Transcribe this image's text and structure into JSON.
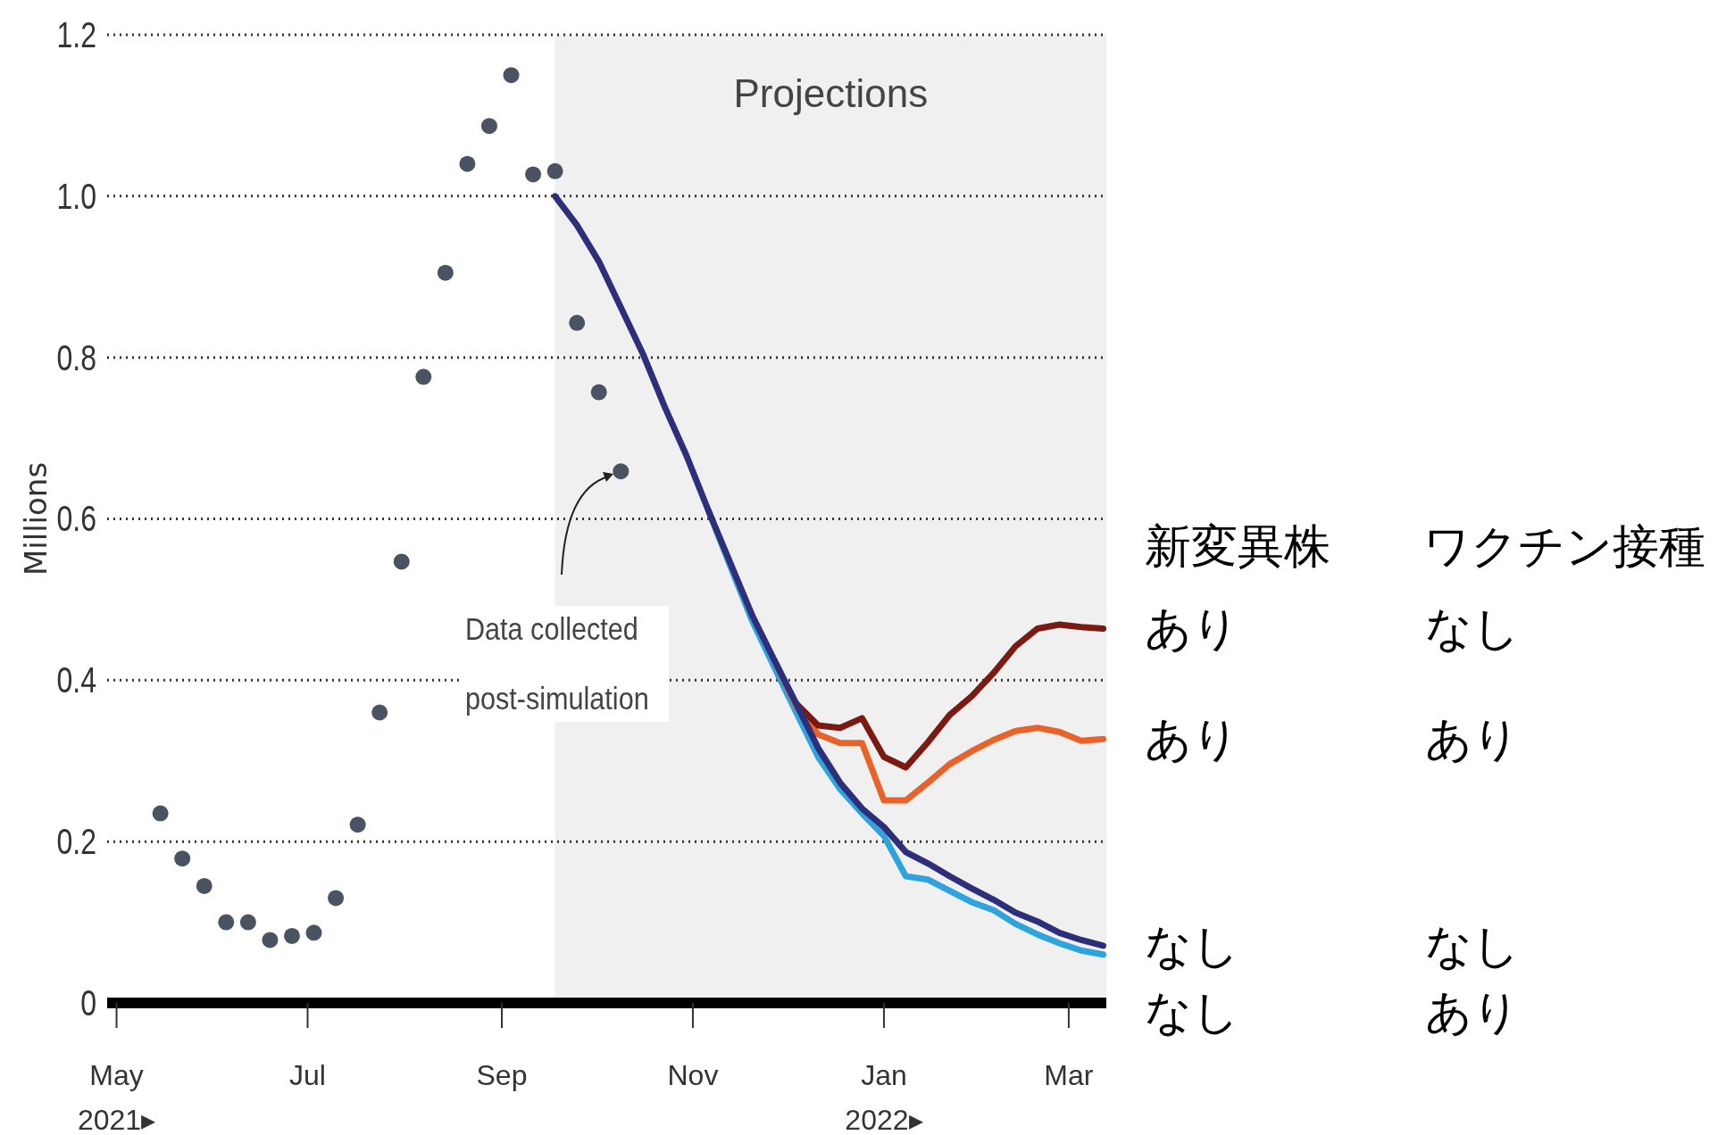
{
  "chart_data": {
    "type": "line",
    "ylabel": "Millions",
    "ylim": [
      0,
      1.2
    ],
    "yticks": [
      0,
      0.2,
      0.4,
      0.6,
      0.8,
      {
        "value": 1,
        "label": "1.0"
      },
      1.2
    ],
    "xlim": [
      "2021-04-28",
      "2022-03-13"
    ],
    "xticks": [
      {
        "value": "2021-05-01",
        "label": "May\n2021▸"
      },
      {
        "value": "2021-07-01",
        "label": "Jul"
      },
      {
        "value": "2021-09-01",
        "label": "Sep"
      },
      {
        "value": "2021-11-01",
        "label": "Nov"
      },
      {
        "value": "2022-01-01",
        "label": "Jan\n2022▸"
      },
      {
        "value": "2022-03-01",
        "label": "Mar"
      }
    ],
    "grid": "y",
    "legend": "right",
    "legend_title": "新変異株　　ワクチン接種",
    "bands": [
      {
        "axis": "x",
        "from": "2021-09-18",
        "to": "2022-03-13",
        "label": "Projections",
        "color": "#f0f0f0"
      }
    ],
    "annotations": [
      "Data collected\npost-simulation"
    ],
    "series": [
      {
        "type": "scatter",
        "color": "#4a5361",
        "x": [
          "2021-05-15",
          "2021-05-22",
          "2021-05-29",
          "2021-06-05",
          "2021-06-12",
          "2021-06-19",
          "2021-06-26",
          "2021-07-03",
          "2021-07-10",
          "2021-07-17",
          "2021-07-24",
          "2021-07-31",
          "2021-08-07",
          "2021-08-14",
          "2021-08-21",
          "2021-08-28",
          "2021-09-04",
          "2021-09-11",
          "2021-09-18",
          "2021-09-25",
          "2021-10-02",
          "2021-10-09"
        ],
        "values": [
          0.235,
          0.179,
          0.145,
          0.1,
          0.1,
          0.078,
          0.083,
          0.087,
          0.13,
          0.221,
          0.36,
          0.547,
          0.776,
          0.905,
          1.04,
          1.087,
          1.15,
          1.027,
          1.031,
          0.843,
          0.757,
          0.659
        ]
      },
      {
        "name": "なし　　　　あり",
        "color": "#2ea3dc",
        "x": [
          "2021-11-06",
          "2021-11-13",
          "2021-11-20",
          "2021-11-27",
          "2021-12-04",
          "2021-12-11",
          "2021-12-18",
          "2021-12-25",
          "2022-01-01",
          "2022-01-08",
          "2022-01-15",
          "2022-01-22",
          "2022-01-29",
          "2022-02-05",
          "2022-02-12",
          "2022-02-19",
          "2022-02-26",
          "2022-03-05",
          "2022-03-12"
        ],
        "values": [
          0.61,
          0.541,
          0.473,
          0.416,
          0.36,
          0.305,
          0.265,
          0.235,
          0.207,
          0.157,
          0.153,
          0.139,
          0.125,
          0.115,
          0.098,
          0.085,
          0.074,
          0.065,
          0.06
        ]
      },
      {
        "name": "あり　　　　あり",
        "color": "#e8622a",
        "x": [
          "2021-11-27",
          "2021-12-04",
          "2021-12-11",
          "2021-12-18",
          "2021-12-25",
          "2022-01-01",
          "2022-01-08",
          "2022-01-15",
          "2022-01-22",
          "2022-01-29",
          "2022-02-05",
          "2022-02-12",
          "2022-02-19",
          "2022-02-26",
          "2022-03-05",
          "2022-03-12"
        ],
        "values": [
          0.425,
          0.368,
          0.333,
          0.322,
          0.322,
          0.251,
          0.251,
          0.273,
          0.296,
          0.312,
          0.326,
          0.337,
          0.341,
          0.336,
          0.325,
          0.327
        ]
      },
      {
        "name": "あり　　　　なし",
        "color": "#7a1a12",
        "x": [
          "2021-12-04",
          "2021-12-11",
          "2021-12-18",
          "2021-12-25",
          "2022-01-01",
          "2022-01-08",
          "2022-01-15",
          "2022-01-22",
          "2022-01-29",
          "2022-02-05",
          "2022-02-12",
          "2022-02-19",
          "2022-02-26",
          "2022-03-05",
          "2022-03-12"
        ],
        "values": [
          0.371,
          0.344,
          0.341,
          0.353,
          0.305,
          0.292,
          0.323,
          0.357,
          0.38,
          0.409,
          0.442,
          0.464,
          0.469,
          0.466,
          0.464
        ]
      },
      {
        "name": "なし　　　　なし",
        "color": "#2e2f7a",
        "x": [
          "2021-09-18",
          "2021-09-25",
          "2021-10-02",
          "2021-10-09",
          "2021-10-16",
          "2021-10-23",
          "2021-10-30",
          "2021-11-06",
          "2021-11-13",
          "2021-11-20",
          "2021-11-27",
          "2021-12-04",
          "2021-12-11",
          "2021-12-18",
          "2021-12-25",
          "2022-01-01",
          "2022-01-08",
          "2022-01-15",
          "2022-01-22",
          "2022-01-29",
          "2022-02-05",
          "2022-02-12",
          "2022-02-19",
          "2022-02-26",
          "2022-03-05",
          "2022-03-12"
        ],
        "values": [
          1.0,
          0.964,
          0.919,
          0.862,
          0.805,
          0.739,
          0.678,
          0.61,
          0.545,
          0.48,
          0.425,
          0.371,
          0.316,
          0.273,
          0.241,
          0.218,
          0.187,
          0.173,
          0.157,
          0.142,
          0.128,
          0.112,
          0.101,
          0.087,
          0.078,
          0.071
        ]
      }
    ]
  }
}
